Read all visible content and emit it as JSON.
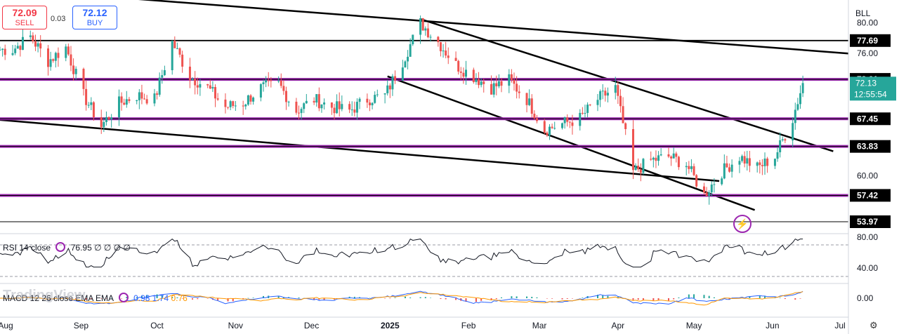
{
  "trade": {
    "sell_price": "72.09",
    "sell_label": "SELL",
    "spread": "0.03",
    "buy_price": "72.12",
    "buy_label": "BUY"
  },
  "currency_label": "BLL",
  "countdown": "12:55:54",
  "indicators": {
    "rsi_label": "RSI 14 close",
    "rsi_value": "76.95",
    "rsi_extra": "∅ ∅ ∅ ∅",
    "macd_label": "MACD 12 26 close EMA EMA",
    "macd_v1": "0.98",
    "macd_v2": "1.74",
    "macd_v3": "0.76"
  },
  "logo_text": "TradingView",
  "colors": {
    "up": "#26a69a",
    "down": "#ef5350",
    "level": "#9c27b0",
    "price_tag": "#26a69a"
  },
  "chart_data": {
    "type": "candlestick",
    "x_ticks": [
      "Aug",
      "Sep",
      "Oct",
      "Nov",
      "Dec",
      "2025",
      "Feb",
      "Mar",
      "Apr",
      "May",
      "Jun",
      "Jul"
    ],
    "y_ticks": [
      80.0,
      76.0,
      60.0
    ],
    "y_range": [
      52.5,
      83.0
    ],
    "horizontal_levels": [
      {
        "value": 77.69,
        "color": "black"
      },
      {
        "value": 72.61,
        "color": "purple"
      },
      {
        "value": 67.45,
        "color": "purple"
      },
      {
        "value": 63.83,
        "color": "purple"
      },
      {
        "value": 57.42,
        "color": "purple"
      },
      {
        "value": 53.97,
        "color": "purple"
      }
    ],
    "current_price": 72.13,
    "close_series": [
      {
        "d": "2024-08-05",
        "v": 76.5
      },
      {
        "d": "2024-08-12",
        "v": 78.2
      },
      {
        "d": "2024-08-19",
        "v": 75.0
      },
      {
        "d": "2024-08-26",
        "v": 76.8
      },
      {
        "d": "2024-09-02",
        "v": 70.5
      },
      {
        "d": "2024-09-09",
        "v": 66.5
      },
      {
        "d": "2024-09-16",
        "v": 69.5
      },
      {
        "d": "2024-09-23",
        "v": 70.5
      },
      {
        "d": "2024-09-30",
        "v": 70.0
      },
      {
        "d": "2024-10-07",
        "v": 77.5
      },
      {
        "d": "2024-10-14",
        "v": 73.0
      },
      {
        "d": "2024-10-21",
        "v": 71.5
      },
      {
        "d": "2024-10-28",
        "v": 69.0
      },
      {
        "d": "2024-11-04",
        "v": 69.5
      },
      {
        "d": "2024-11-11",
        "v": 71.5
      },
      {
        "d": "2024-11-18",
        "v": 72.0
      },
      {
        "d": "2024-11-25",
        "v": 68.5
      },
      {
        "d": "2024-12-02",
        "v": 70.0
      },
      {
        "d": "2024-12-09",
        "v": 69.0
      },
      {
        "d": "2024-12-16",
        "v": 68.5
      },
      {
        "d": "2024-12-23",
        "v": 70.0
      },
      {
        "d": "2024-12-30",
        "v": 70.5
      },
      {
        "d": "2025-01-06",
        "v": 75.0
      },
      {
        "d": "2025-01-13",
        "v": 80.0
      },
      {
        "d": "2025-01-20",
        "v": 77.5
      },
      {
        "d": "2025-01-27",
        "v": 74.5
      },
      {
        "d": "2025-02-03",
        "v": 73.0
      },
      {
        "d": "2025-02-10",
        "v": 71.5
      },
      {
        "d": "2025-02-17",
        "v": 72.5
      },
      {
        "d": "2025-02-24",
        "v": 70.0
      },
      {
        "d": "2025-03-03",
        "v": 66.0
      },
      {
        "d": "2025-03-10",
        "v": 66.8
      },
      {
        "d": "2025-03-17",
        "v": 67.5
      },
      {
        "d": "2025-03-24",
        "v": 70.0
      },
      {
        "d": "2025-03-31",
        "v": 71.5
      },
      {
        "d": "2025-04-07",
        "v": 60.5
      },
      {
        "d": "2025-04-14",
        "v": 62.0
      },
      {
        "d": "2025-04-21",
        "v": 62.5
      },
      {
        "d": "2025-04-28",
        "v": 61.5
      },
      {
        "d": "2025-05-05",
        "v": 57.5
      },
      {
        "d": "2025-05-12",
        "v": 60.5
      },
      {
        "d": "2025-05-19",
        "v": 62.5
      },
      {
        "d": "2025-05-26",
        "v": 61.0
      },
      {
        "d": "2025-06-02",
        "v": 62.5
      },
      {
        "d": "2025-06-09",
        "v": 67.5
      },
      {
        "d": "2025-06-13",
        "v": 72.13
      }
    ]
  }
}
